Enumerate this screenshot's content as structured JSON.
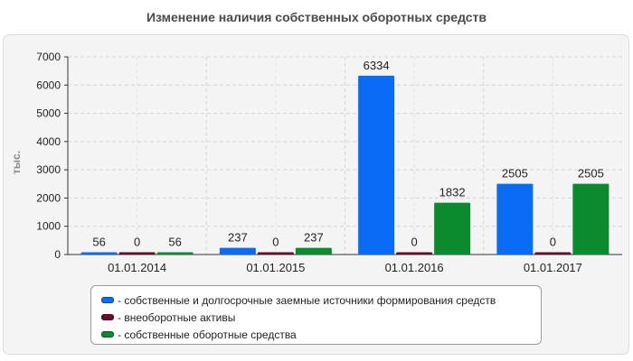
{
  "chart_data": {
    "type": "bar",
    "title": "Изменение наличия собственных оборотных средств",
    "ylabel": "тыс.",
    "xlabel": "",
    "ylim": [
      0,
      7000
    ],
    "yticks": [
      0,
      1000,
      2000,
      3000,
      4000,
      5000,
      6000,
      7000
    ],
    "grid": true,
    "legend_position": "bottom",
    "categories": [
      "01.01.2014",
      "01.01.2015",
      "01.01.2016",
      "01.01.2017"
    ],
    "series": [
      {
        "name": "- собственные и долгосрочные заемные источники формирования средств",
        "color": "#0a6cf5",
        "values": [
          56,
          237,
          6334,
          2505
        ]
      },
      {
        "name": "- внеоборотные активы",
        "color": "#6a0a2c",
        "values": [
          0,
          0,
          0,
          0
        ]
      },
      {
        "name": "- собственные оборотные средства",
        "color": "#0c8a2e",
        "values": [
          56,
          237,
          1832,
          2505
        ]
      }
    ]
  }
}
